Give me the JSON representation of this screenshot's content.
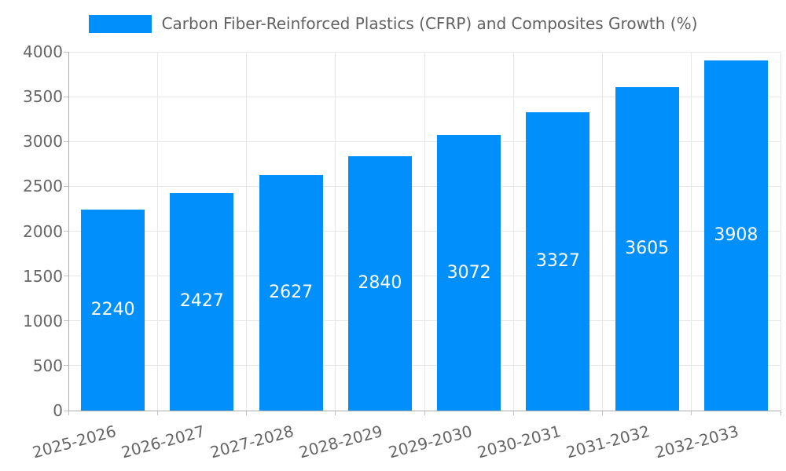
{
  "legend": {
    "label": "Carbon Fiber-Reinforced Plastics (CFRP) and Composites Growth (%)",
    "marker_color": "#008FFB"
  },
  "chart_data": {
    "type": "bar",
    "title": "Carbon Fiber-Reinforced Plastics (CFRP) and Composites Growth (%)",
    "categories": [
      "2025-2026",
      "2026-2027",
      "2027-2028",
      "2028-2029",
      "2029-2030",
      "2030-2031",
      "2031-2032",
      "2032-2033"
    ],
    "values": [
      2240,
      2427,
      2627,
      2840,
      3072,
      3327,
      3605,
      3908
    ],
    "value_labels": [
      "2240",
      "2427",
      "2627",
      "2840",
      "3072",
      "3327",
      "3605",
      "3908"
    ],
    "yticks": [
      0,
      500,
      1000,
      1500,
      2000,
      2500,
      3000,
      3500,
      4000
    ],
    "ytick_labels": [
      "0",
      "500",
      "1000",
      "1500",
      "2000",
      "2500",
      "3000",
      "3500",
      "4000"
    ],
    "ylim": [
      0,
      4000
    ],
    "xlabel": "",
    "ylabel": "",
    "grid": true,
    "legend_position": "top",
    "bar_color": "#008FFB",
    "value_label_color": "#ffffff",
    "axis_label_color": "#666666",
    "grid_color": "#e7e7e7"
  }
}
